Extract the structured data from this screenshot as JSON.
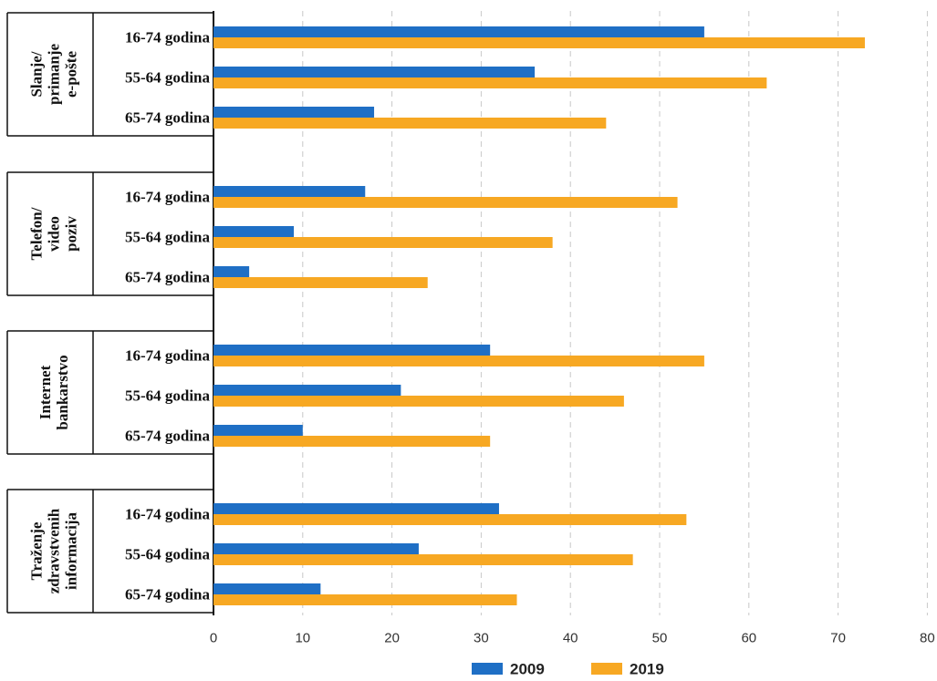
{
  "chart_data": {
    "type": "bar",
    "orientation": "horizontal",
    "xlim": [
      0,
      80
    ],
    "xticks": [
      "0",
      "10",
      "20",
      "30",
      "40",
      "50",
      "60",
      "70",
      "80"
    ],
    "grid": "vertical dashed",
    "legend_position": "bottom",
    "groups": [
      {
        "label_lines": [
          "Slanje/",
          "primanje",
          "e-pošte"
        ],
        "categories": [
          "16-74 godina",
          "55-64 godina",
          "65-74 godina"
        ],
        "series": [
          {
            "name": "2009",
            "values": [
              55,
              36,
              18
            ]
          },
          {
            "name": "2019",
            "values": [
              73,
              62,
              44
            ]
          }
        ]
      },
      {
        "label_lines": [
          "Telefon/",
          "video",
          "poziv"
        ],
        "categories": [
          "16-74 godina",
          "55-64 godina",
          "65-74 godina"
        ],
        "series": [
          {
            "name": "2009",
            "values": [
              17,
              9,
              4
            ]
          },
          {
            "name": "2019",
            "values": [
              52,
              38,
              24
            ]
          }
        ]
      },
      {
        "label_lines": [
          "Internet",
          "bankarstvo"
        ],
        "categories": [
          "16-74 godina",
          "55-64 godina",
          "65-74 godina"
        ],
        "series": [
          {
            "name": "2009",
            "values": [
              31,
              21,
              10
            ]
          },
          {
            "name": "2019",
            "values": [
              55,
              46,
              31
            ]
          }
        ]
      },
      {
        "label_lines": [
          "Traženje",
          "zdravstvenih",
          "informacija"
        ],
        "categories": [
          "16-74 godina",
          "55-64 godina",
          "65-74 godina"
        ],
        "series": [
          {
            "name": "2009",
            "values": [
              32,
              23,
              12
            ]
          },
          {
            "name": "2019",
            "values": [
              53,
              47,
              34
            ]
          }
        ]
      }
    ],
    "legend": [
      {
        "name": "2009",
        "color": "#1f6fc5"
      },
      {
        "name": "2019",
        "color": "#f7a823"
      }
    ]
  }
}
